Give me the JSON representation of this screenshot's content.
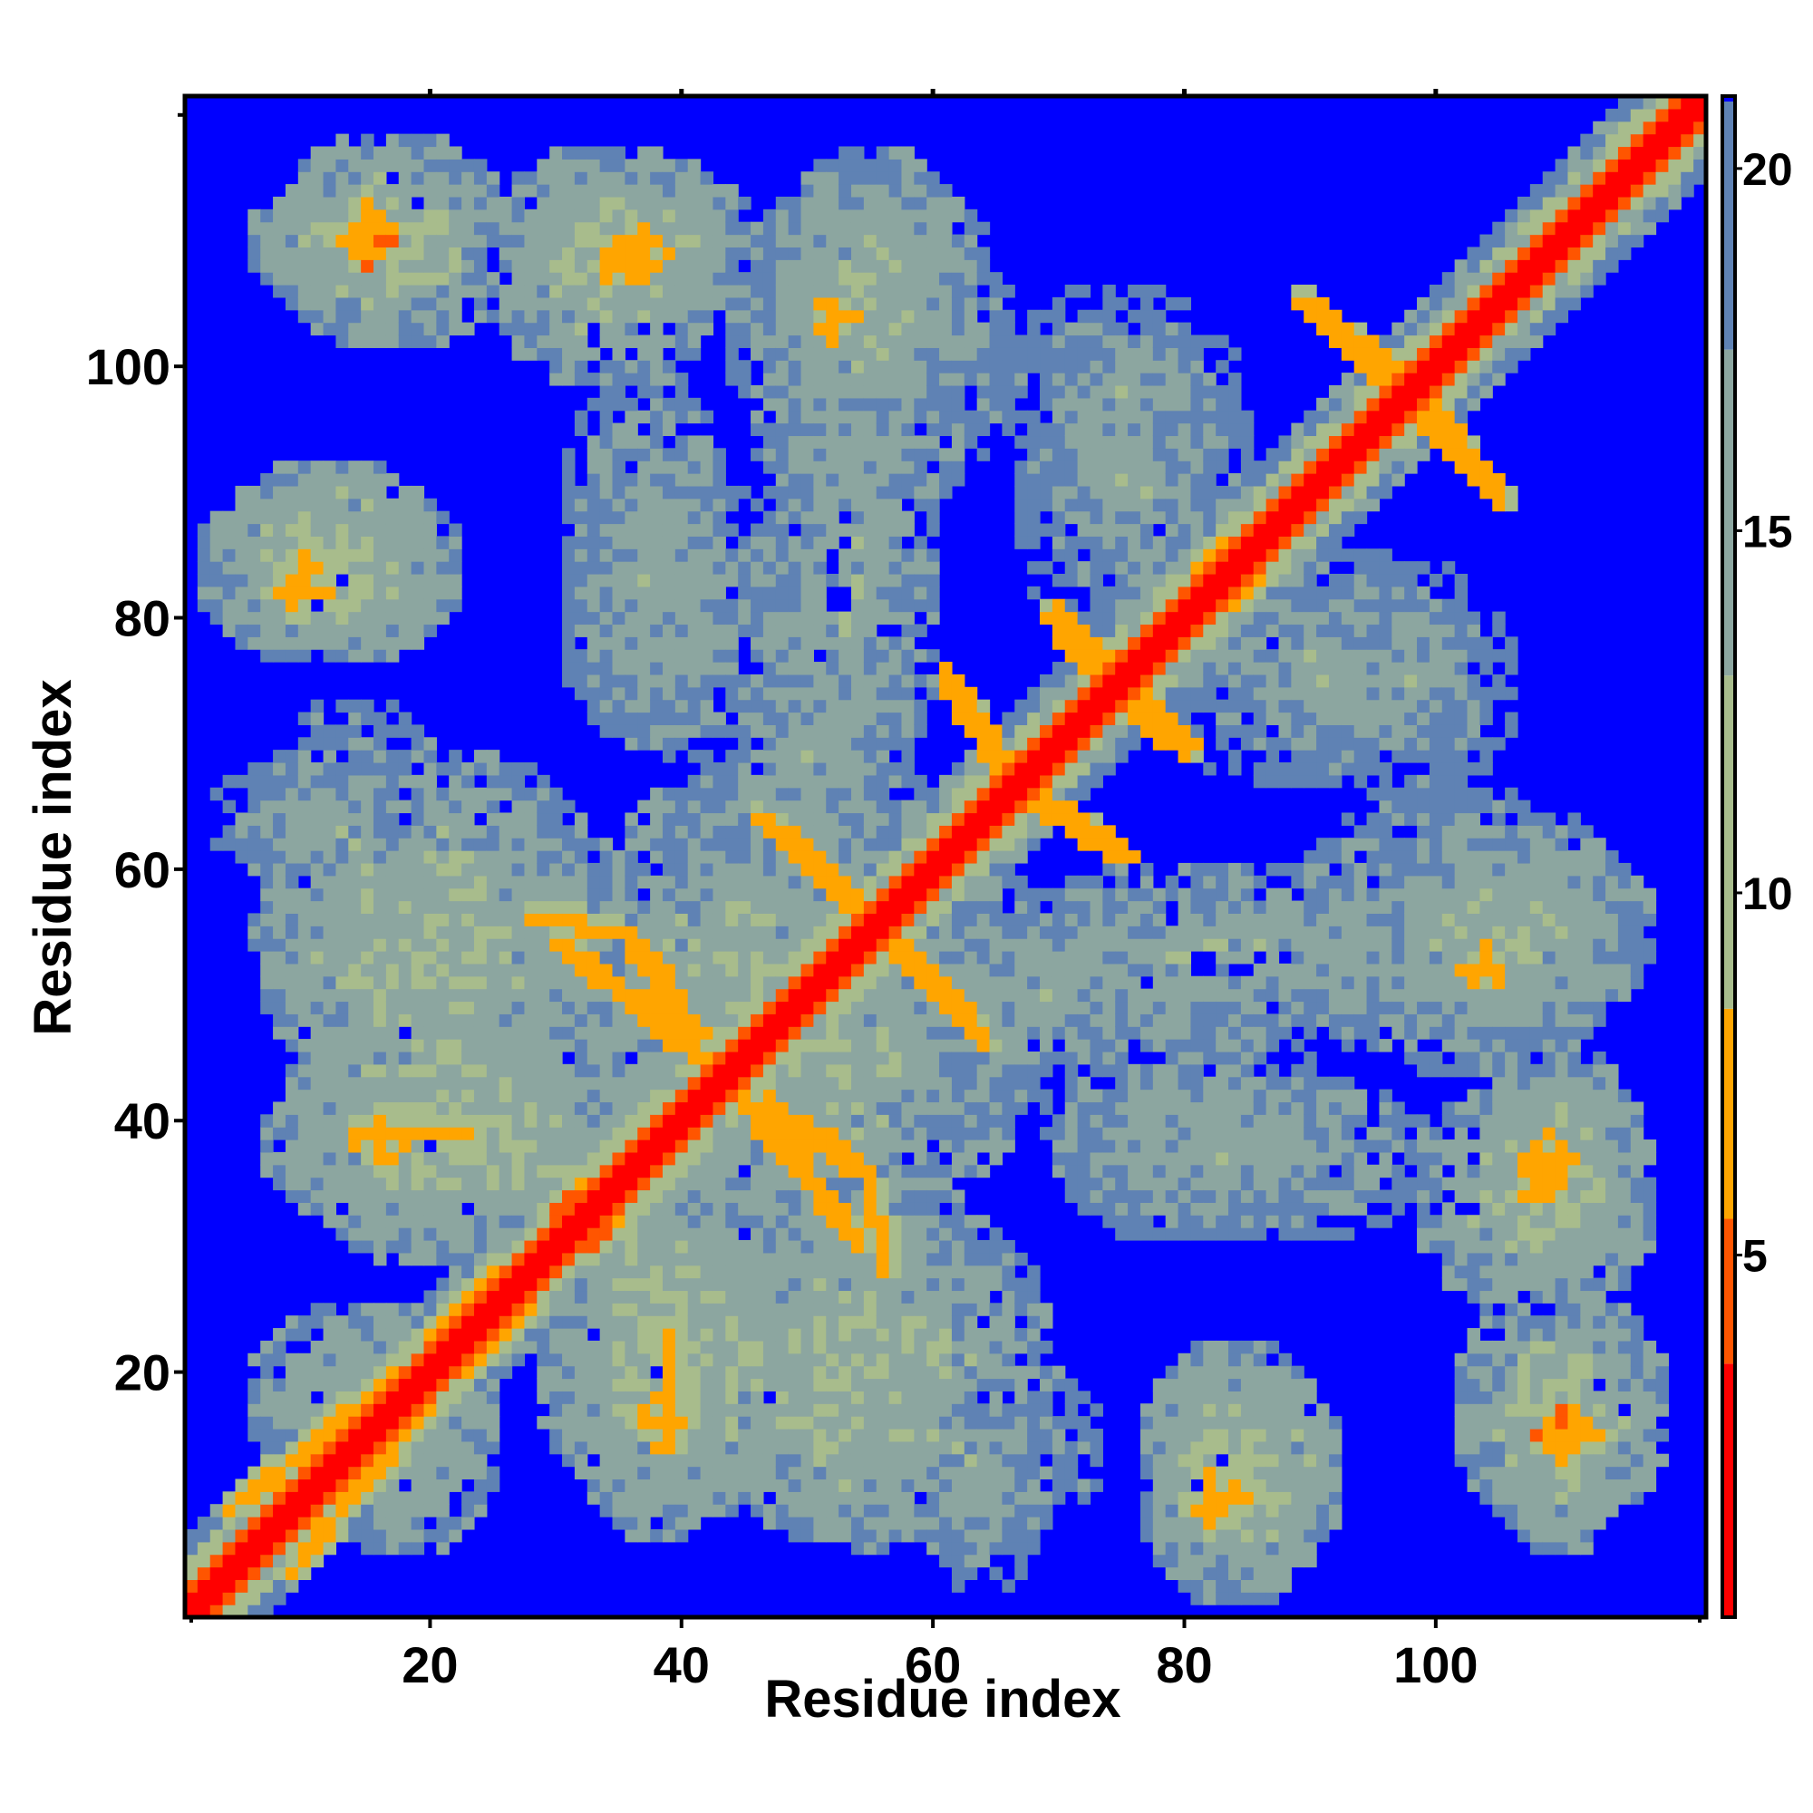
{
  "chart_data": {
    "type": "heatmap",
    "title": "",
    "xlabel": "Residue index",
    "ylabel": "Residue index",
    "n_residues": 121,
    "xlim": [
      0.5,
      121.5
    ],
    "ylim": [
      0.5,
      121.5
    ],
    "x_ticks": [
      20,
      40,
      60,
      80,
      100
    ],
    "y_ticks": [
      20,
      40,
      60,
      80,
      100
    ],
    "x_tick_labels": [
      "20",
      "40",
      "60",
      "80",
      "100"
    ],
    "y_tick_labels": [
      "20",
      "40",
      "60",
      "80",
      "100"
    ],
    "colorbar": {
      "min": 0,
      "max": 21,
      "ticks": [
        5,
        10,
        15,
        20
      ],
      "tick_labels": [
        "5",
        "10",
        "15",
        "20"
      ],
      "bands": [
        {
          "from": 0,
          "to": 3.5,
          "color": "#ff0000"
        },
        {
          "from": 3.5,
          "to": 5.5,
          "color": "#ff5500"
        },
        {
          "from": 5.5,
          "to": 8.4,
          "color": "#ffa500"
        },
        {
          "from": 8.4,
          "to": 13.0,
          "color": "#a8bc8c"
        },
        {
          "from": 13.0,
          "to": 17.5,
          "color": "#8ca6a0"
        },
        {
          "from": 17.5,
          "to": 21,
          "color": "#5f82b4"
        }
      ],
      "cap_color": "#0000ff"
    },
    "grid": false,
    "legend": "colorbar-right",
    "description": "Symmetric residue-residue distance map: red main diagonal (distance < 4), orange contact arms along secondary-structure elements, grey-green clusters for intermediate distances, blue background for distances beyond the colour range.",
    "contact_segments": [
      {
        "from": [
          4,
          9
        ],
        "to": [
          19,
          21
        ],
        "value": 6
      },
      {
        "from": [
          20,
          23
        ],
        "to": [
          34,
          35
        ],
        "value": 6
      },
      {
        "from": [
          30,
          33
        ],
        "to": [
          38,
          38
        ],
        "value": 5
      },
      {
        "from": [
          14,
          39
        ],
        "to": [
          22,
          39
        ],
        "value": 6
      },
      {
        "from": [
          28,
          56
        ],
        "to": [
          35,
          55
        ],
        "value": 6
      },
      {
        "from": [
          36,
          54
        ],
        "to": [
          41,
          46
        ],
        "value": 6
      },
      {
        "from": [
          46,
          64
        ],
        "to": [
          55,
          56
        ],
        "value": 6
      },
      {
        "from": [
          56,
          55
        ],
        "to": [
          63,
          47
        ],
        "value": 6
      },
      {
        "from": [
          44,
          42
        ],
        "to": [
          54,
          30
        ],
        "value": 6
      },
      {
        "from": [
          62,
          73
        ],
        "to": [
          66,
          67
        ],
        "value": 6
      },
      {
        "from": [
          69,
          80
        ],
        "to": [
          73,
          75
        ],
        "value": 6
      },
      {
        "from": [
          70,
          64
        ],
        "to": [
          75,
          61
        ],
        "value": 6
      },
      {
        "from": [
          75,
          74
        ],
        "to": [
          80,
          70
        ],
        "value": 6
      },
      {
        "from": [
          81,
          84
        ],
        "to": [
          91,
          91
        ],
        "value": 6
      },
      {
        "from": [
          89,
          105
        ],
        "to": [
          96,
          99
        ],
        "value": 6
      },
      {
        "from": [
          99,
          97
        ],
        "to": [
          104,
          90
        ],
        "value": 6
      }
    ],
    "contact_blobs": [
      {
        "x": 15,
        "y": 111,
        "value": 6
      },
      {
        "x": 35,
        "y": 108,
        "value": 6
      },
      {
        "x": 38,
        "y": 16,
        "value": 6
      },
      {
        "x": 109,
        "y": 37,
        "value": 6
      },
      {
        "x": 110,
        "y": 15,
        "value": 5
      },
      {
        "x": 84,
        "y": 10,
        "value": 7
      },
      {
        "x": 104,
        "y": 52,
        "value": 7
      },
      {
        "x": 10,
        "y": 82,
        "value": 7
      }
    ],
    "intermediate_clusters": [
      {
        "x": 14,
        "y": 110,
        "rx": 9,
        "ry": 6,
        "value": 12
      },
      {
        "x": 36,
        "y": 110,
        "rx": 10,
        "ry": 7,
        "value": 12
      },
      {
        "x": 55,
        "y": 102,
        "rx": 12,
        "ry": 14,
        "value": 14
      },
      {
        "x": 75,
        "y": 97,
        "rx": 10,
        "ry": 10,
        "value": 15
      },
      {
        "x": 12,
        "y": 84,
        "rx": 11,
        "ry": 8,
        "value": 12
      },
      {
        "x": 40,
        "y": 80,
        "rx": 10,
        "ry": 12,
        "value": 15
      },
      {
        "x": 50,
        "y": 68,
        "rx": 10,
        "ry": 12,
        "value": 15
      },
      {
        "x": 90,
        "y": 76,
        "rx": 14,
        "ry": 10,
        "value": 15
      },
      {
        "x": 20,
        "y": 52,
        "rx": 14,
        "ry": 10,
        "value": 12
      },
      {
        "x": 50,
        "y": 45,
        "rx": 18,
        "ry": 16,
        "value": 13
      },
      {
        "x": 82,
        "y": 53,
        "rx": 18,
        "ry": 8,
        "value": 14
      },
      {
        "x": 106,
        "y": 55,
        "rx": 12,
        "ry": 9,
        "value": 13
      },
      {
        "x": 22,
        "y": 38,
        "rx": 16,
        "ry": 8,
        "value": 12
      },
      {
        "x": 85,
        "y": 37,
        "rx": 16,
        "ry": 7,
        "value": 14
      },
      {
        "x": 108,
        "y": 34,
        "rx": 10,
        "ry": 10,
        "value": 12
      },
      {
        "x": 40,
        "y": 20,
        "rx": 12,
        "ry": 12,
        "value": 12
      },
      {
        "x": 58,
        "y": 22,
        "rx": 12,
        "ry": 12,
        "value": 13
      },
      {
        "x": 85,
        "y": 12,
        "rx": 8,
        "ry": 9,
        "value": 12
      },
      {
        "x": 110,
        "y": 17,
        "rx": 9,
        "ry": 10,
        "value": 12
      },
      {
        "x": 10,
        "y": 64,
        "rx": 8,
        "ry": 5,
        "value": 16
      },
      {
        "x": 60,
        "y": 14,
        "rx": 14,
        "ry": 9,
        "value": 14
      },
      {
        "x": 15,
        "y": 18,
        "rx": 10,
        "ry": 8,
        "value": 13
      }
    ]
  }
}
